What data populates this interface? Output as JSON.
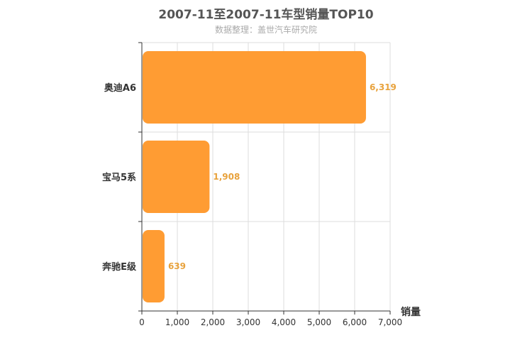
{
  "title": "2007-11至2007-11车型销量TOP10",
  "subtitle": "数据整理：盖世汽车研究院",
  "colors": {
    "bar": "#ff9c33",
    "data_label": "#e8a23c",
    "grid": "#dddddd",
    "axis": "#333333"
  },
  "chart_data": {
    "type": "bar",
    "orientation": "horizontal",
    "title": "2007-11至2007-11车型销量TOP10",
    "subtitle": "数据整理：盖世汽车研究院",
    "categories": [
      "奥迪A6",
      "宝马5系",
      "奔驰E级"
    ],
    "values": [
      6319,
      1908,
      639
    ],
    "value_labels": [
      "6,319",
      "1,908",
      "639"
    ],
    "xlabel": "销量",
    "ylabel": "",
    "xlim": [
      0,
      7000
    ],
    "x_ticks": [
      0,
      1000,
      2000,
      3000,
      4000,
      5000,
      6000,
      7000
    ],
    "x_tick_labels": [
      "0",
      "1,000",
      "2,000",
      "3,000",
      "4,000",
      "5,000",
      "6,000",
      "7,000"
    ],
    "grid": true,
    "legend": "none"
  }
}
